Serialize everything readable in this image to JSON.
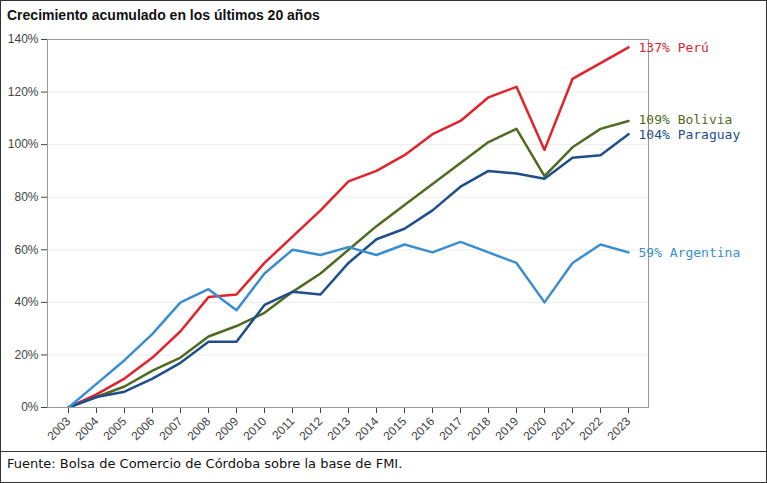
{
  "chart_data": {
    "type": "line",
    "title": "Crecimiento acumulado en los últimos 20 años",
    "caption": "Fuente: Bolsa de Comercio de Córdoba sobre la base de FMI.",
    "categories": [
      "2003",
      "2004",
      "2005",
      "2006",
      "2007",
      "2008",
      "2009",
      "2010",
      "2011",
      "2012",
      "2013",
      "2014",
      "2015",
      "2016",
      "2017",
      "2018",
      "2019",
      "2020",
      "2021",
      "2022",
      "2023"
    ],
    "series": [
      {
        "name": "137% Perú",
        "color": "#e3232b",
        "values": [
          0,
          5,
          11,
          19,
          29,
          42,
          43,
          55,
          65,
          75,
          86,
          90,
          96,
          104,
          109,
          118,
          122,
          98,
          125,
          131,
          137
        ]
      },
      {
        "name": "109% Bolivia",
        "color": "#4f6b22",
        "values": [
          0,
          4,
          8,
          14,
          19,
          27,
          31,
          36,
          44,
          51,
          60,
          69,
          77,
          85,
          93,
          101,
          106,
          88,
          99,
          106,
          109
        ]
      },
      {
        "name": "104% Paraguay",
        "color": "#1f4e8a",
        "values": [
          0,
          4,
          6,
          11,
          17,
          25,
          25,
          39,
          44,
          43,
          55,
          64,
          68,
          75,
          84,
          90,
          89,
          87,
          95,
          96,
          104
        ]
      },
      {
        "name": "59% Argentina",
        "color": "#3a8ecf",
        "values": [
          0,
          9,
          18,
          28,
          40,
          45,
          37,
          51,
          60,
          58,
          61,
          58,
          62,
          59,
          63,
          59,
          55,
          40,
          55,
          62,
          59
        ]
      }
    ],
    "ylim": [
      0,
      140
    ],
    "yticks": [
      {
        "value": 0,
        "label": "0%"
      },
      {
        "value": 20,
        "label": "20%"
      },
      {
        "value": 40,
        "label": "40%"
      },
      {
        "value": 60,
        "label": "60%"
      },
      {
        "value": 80,
        "label": "80%"
      },
      {
        "value": 100,
        "label": "100%"
      },
      {
        "value": 120,
        "label": "120%"
      },
      {
        "value": 140,
        "label": "140%"
      }
    ],
    "grid": true
  }
}
